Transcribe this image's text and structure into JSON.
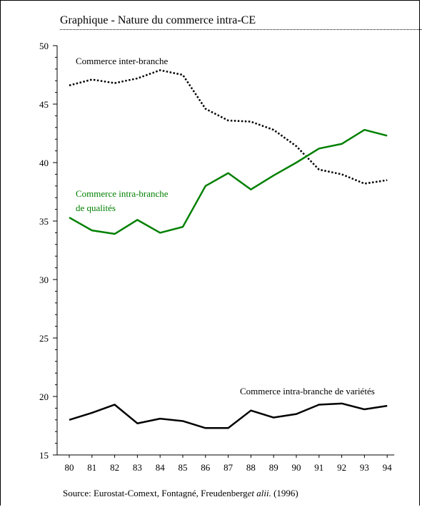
{
  "title": "Graphique  - Nature du commerce intra-CE",
  "source": {
    "prefix": "Source:  Eurostat-Comext, Fontagné, Freudenberg",
    "italic": "et alii.",
    "suffix": " (1996)"
  },
  "chart_data": {
    "type": "line",
    "categories": [
      "80",
      "81",
      "82",
      "83",
      "84",
      "85",
      "86",
      "87",
      "88",
      "89",
      "90",
      "91",
      "92",
      "93",
      "94"
    ],
    "ylim": [
      15,
      50
    ],
    "y_ticks": [
      15,
      20,
      25,
      30,
      35,
      40,
      45,
      50
    ],
    "grid": false,
    "series": [
      {
        "name": "Commerce inter-branche",
        "color": "#000000",
        "style": "dotted",
        "values": [
          46.6,
          47.1,
          46.8,
          47.2,
          47.9,
          47.5,
          44.6,
          43.6,
          43.5,
          42.8,
          41.4,
          39.4,
          39.0,
          38.2,
          38.5
        ]
      },
      {
        "name": "Commerce intra-branche de qualités",
        "color": "#008000",
        "style": "solid",
        "values": [
          35.3,
          34.2,
          33.9,
          35.1,
          34.0,
          34.5,
          38.0,
          39.1,
          37.7,
          38.9,
          40.0,
          41.2,
          41.6,
          42.8,
          42.3
        ]
      },
      {
        "name": "Commerce intra-branche de variétés",
        "color": "#000000",
        "style": "solid",
        "values": [
          18.0,
          18.6,
          19.3,
          17.7,
          18.1,
          17.9,
          17.3,
          17.3,
          18.8,
          18.2,
          18.5,
          19.3,
          19.4,
          18.9,
          19.2
        ]
      }
    ],
    "labels": [
      {
        "lines": [
          "Commerce inter-branche"
        ],
        "color": "#000000"
      },
      {
        "lines": [
          "Commerce intra-branche",
          "de qualités"
        ],
        "color": "#008000"
      },
      {
        "lines": [
          "Commerce intra-branche de variétés"
        ],
        "color": "#000000"
      }
    ]
  }
}
